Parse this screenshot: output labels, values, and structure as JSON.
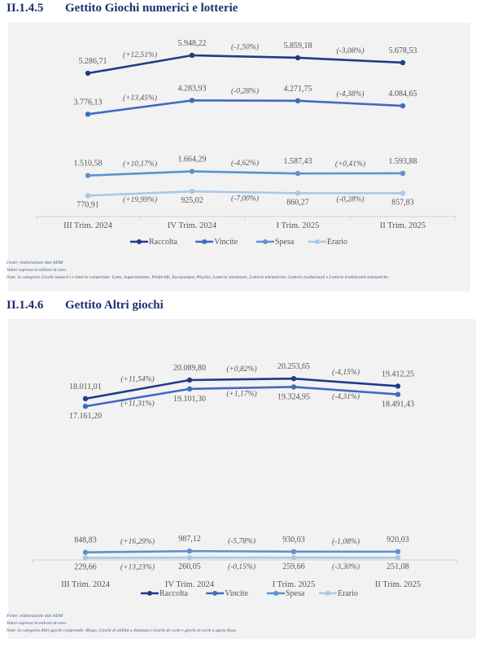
{
  "sections": [
    {
      "number": "II.1.4.5",
      "title": "Gettito Giochi numerici e lotterie",
      "notes": [
        "Fonte: elaborazione dati ADM",
        "Valori espressi in milioni di euro",
        "Note: la categoria Giochi numerici e lotterie comprende: Lotto, Superenalotto, Winforlife, Eurojackpot, PlaySix, Lotterie istantanee, Lotterie telematiche, Lotterie tradizionali e Lotterie tradizionali telematiche"
      ]
    },
    {
      "number": "II.1.4.6",
      "title": "Gettito Altri giochi",
      "notes": [
        "Fonte: elaborazione dati ADM",
        "Valori espressi in milioni di euro",
        "Note: la categoria Altri giochi comprende: Bingo, Giochi di abilità a distanza e Giochi di carte e giochi di sorte a quota fissa."
      ]
    }
  ],
  "chart_data": [
    {
      "type": "line",
      "categories": [
        "III Trim. 2024",
        "IV Trim. 2024",
        "I Trim. 2025",
        "II Trim. 2025"
      ],
      "ylim": [
        0,
        7000
      ],
      "grid": false,
      "legend": "bottom",
      "series": [
        {
          "name": "Raccolta",
          "color": "#1f3c88",
          "values": [
            5286.71,
            5948.22,
            5859.18,
            5678.53
          ],
          "labels": [
            "5.286,71",
            "5.948,22",
            "5.859,18",
            "5.678,53"
          ],
          "changes": [
            "(+12,51%)",
            "(-1,50%)",
            "(-3,08%)"
          ]
        },
        {
          "name": "Vincite",
          "color": "#3f6bbf",
          "values": [
            3776.13,
            4283.93,
            4271.75,
            4084.65
          ],
          "labels": [
            "3.776,13",
            "4.283,93",
            "4.271,75",
            "4.084,65"
          ],
          "changes": [
            "(+13,45%)",
            "(-0,28%)",
            "(-4,38%)"
          ]
        },
        {
          "name": "Spesa",
          "color": "#5b93cf",
          "values": [
            1510.58,
            1664.29,
            1587.43,
            1593.88
          ],
          "labels": [
            "1.510,58",
            "1.664,29",
            "1.587,43",
            "1.593,88"
          ],
          "changes": [
            "(+10,17%)",
            "(-4,62%)",
            "(+0,41%)"
          ]
        },
        {
          "name": "Erario",
          "color": "#a9c8e6",
          "values": [
            770.91,
            925.02,
            860.27,
            857.83
          ],
          "labels": [
            "770,91",
            "925,02",
            "860,27",
            "857,83"
          ],
          "changes": [
            "(+19,99%)",
            "(-7,00%)",
            "(-0,28%)"
          ]
        }
      ]
    },
    {
      "type": "line",
      "categories": [
        "III Trim. 2024",
        "IV Trim. 2024",
        "I Trim. 2025",
        "II Trim. 2025"
      ],
      "ylim": [
        0,
        22000
      ],
      "grid": false,
      "legend": "bottom",
      "series": [
        {
          "name": "Raccolta",
          "color": "#1f3c88",
          "values": [
            18011.01,
            20089.8,
            20253.65,
            19412.25
          ],
          "labels": [
            "18.011,01",
            "20.089,80",
            "20.253,65",
            "19.412,25"
          ],
          "changes": [
            "(+11,54%)",
            "(+0,82%)",
            "(-4,15%)"
          ]
        },
        {
          "name": "Vincite",
          "color": "#3f6bbf",
          "values": [
            17161.2,
            19101.3,
            19324.95,
            18491.43
          ],
          "labels": [
            "17.161,20",
            "19.101,30",
            "19.324,95",
            "18.491,43"
          ],
          "changes": [
            "(+11,31%)",
            "(+1,17%)",
            "(-4,31%)"
          ]
        },
        {
          "name": "Spesa",
          "color": "#5b93cf",
          "values": [
            848.83,
            987.12,
            930.03,
            920.03
          ],
          "labels": [
            "848,83",
            "987,12",
            "930,03",
            "920,03"
          ],
          "changes": [
            "(+16,29%)",
            "(-5,78%)",
            "(-1,08%)"
          ]
        },
        {
          "name": "Erario",
          "color": "#a9c8e6",
          "values": [
            229.66,
            260.05,
            259.66,
            251.08
          ],
          "labels": [
            "229,66",
            "260,05",
            "259,66",
            "251,08"
          ],
          "changes": [
            "(+13,23%)",
            "(-0,15%)",
            "(-3,30%)"
          ]
        }
      ]
    }
  ]
}
